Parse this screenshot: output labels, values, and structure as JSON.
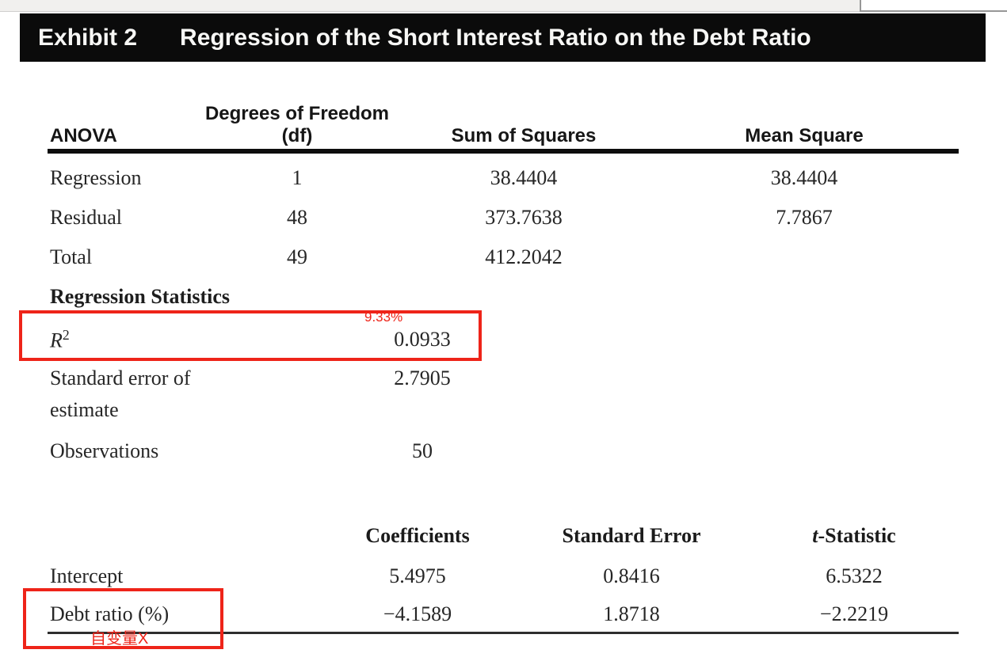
{
  "exhibit": {
    "label": "Exhibit 2",
    "title": "Regression of the Short Interest Ratio on the Debt Ratio"
  },
  "anova_table": {
    "columns": [
      "ANOVA",
      "Degrees of Freedom (df)",
      "Sum of Squares",
      "Mean Square"
    ],
    "rows": [
      {
        "label": "Regression",
        "df": "1",
        "sum_of_squares": "38.4404",
        "mean_square": "38.4404"
      },
      {
        "label": "Residual",
        "df": "48",
        "sum_of_squares": "373.7638",
        "mean_square": "7.7867"
      },
      {
        "label": "Total",
        "df": "49",
        "sum_of_squares": "412.2042",
        "mean_square": ""
      }
    ]
  },
  "regression_statistics": {
    "heading": "Regression Statistics",
    "r_squared": {
      "label_base": "R",
      "label_sup": "2",
      "value": "0.0933"
    },
    "standard_error_of_estimate": {
      "label": "Standard error of estimate",
      "value": "2.7905"
    },
    "observations": {
      "label": "Observations",
      "value": "50"
    }
  },
  "coefficients_table": {
    "columns": [
      "Coefficients",
      "Standard Error",
      {
        "italic_prefix": "t",
        "rest": "-Statistic"
      }
    ],
    "rows": [
      {
        "label": "Intercept",
        "coefficient": "5.4975",
        "standard_error": "0.8416",
        "t_statistic": "6.5322"
      },
      {
        "label": "Debt ratio (%)",
        "coefficient": "−4.1589",
        "standard_error": "1.8718",
        "t_statistic": "−2.2219"
      }
    ]
  },
  "annotations": {
    "r_squared_note": "9.33%",
    "debt_ratio_note": "自变量X",
    "highlight_color": "#ee2419"
  }
}
